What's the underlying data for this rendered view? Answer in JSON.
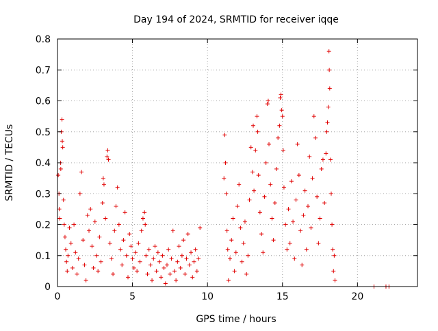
{
  "chart_data": {
    "type": "scatter",
    "title": "Day 194 of 2024, SRMTID for receiver iqqe",
    "xlabel": "GPS time / hours",
    "ylabel": "SRMTID / TECUs",
    "xlim": [
      0,
      24
    ],
    "ylim": [
      0,
      0.8
    ],
    "xticks": [
      0,
      5,
      10,
      15,
      20
    ],
    "xtick_labels": [
      "0",
      "5",
      "10",
      "15",
      "20"
    ],
    "yticks": [
      0,
      0.1,
      0.2,
      0.3,
      0.4,
      0.5,
      0.6,
      0.7,
      0.8
    ],
    "ytick_labels": [
      "0",
      "0.1",
      "0.2",
      "0.3",
      "0.4",
      "0.5",
      "0.6",
      "0.7",
      "0.8"
    ],
    "grid": true,
    "marker": "+",
    "marker_color": "#e00000",
    "series": [
      {
        "name": "SRMTID",
        "points": [
          [
            0.05,
            0.36
          ],
          [
            0.1,
            0.3
          ],
          [
            0.12,
            0.25
          ],
          [
            0.15,
            0.22
          ],
          [
            0.2,
            0.4
          ],
          [
            0.22,
            0.38
          ],
          [
            0.25,
            0.5
          ],
          [
            0.3,
            0.54
          ],
          [
            0.32,
            0.47
          ],
          [
            0.35,
            0.45
          ],
          [
            0.4,
            0.28
          ],
          [
            0.45,
            0.2
          ],
          [
            0.5,
            0.16
          ],
          [
            0.55,
            0.12
          ],
          [
            0.6,
            0.08
          ],
          [
            0.65,
            0.05
          ],
          [
            0.7,
            0.1
          ],
          [
            0.8,
            0.19
          ],
          [
            0.9,
            0.14
          ],
          [
            1.0,
            0.06
          ],
          [
            1.1,
            0.2
          ],
          [
            1.2,
            0.11
          ],
          [
            1.3,
            0.04
          ],
          [
            1.4,
            0.09
          ],
          [
            1.5,
            0.3
          ],
          [
            1.6,
            0.37
          ],
          [
            1.7,
            0.15
          ],
          [
            1.8,
            0.07
          ],
          [
            1.9,
            0.02
          ],
          [
            2.0,
            0.23
          ],
          [
            2.1,
            0.18
          ],
          [
            2.2,
            0.25
          ],
          [
            2.3,
            0.13
          ],
          [
            2.4,
            0.06
          ],
          [
            2.5,
            0.21
          ],
          [
            2.6,
            0.1
          ],
          [
            2.7,
            0.05
          ],
          [
            2.8,
            0.16
          ],
          [
            2.9,
            0.08
          ],
          [
            3.0,
            0.27
          ],
          [
            3.05,
            0.35
          ],
          [
            3.1,
            0.33
          ],
          [
            3.2,
            0.22
          ],
          [
            3.3,
            0.42
          ],
          [
            3.35,
            0.44
          ],
          [
            3.4,
            0.41
          ],
          [
            3.5,
            0.14
          ],
          [
            3.6,
            0.09
          ],
          [
            3.7,
            0.04
          ],
          [
            3.8,
            0.18
          ],
          [
            3.9,
            0.26
          ],
          [
            4.0,
            0.32
          ],
          [
            4.1,
            0.2
          ],
          [
            4.2,
            0.12
          ],
          [
            4.3,
            0.07
          ],
          [
            4.4,
            0.15
          ],
          [
            4.5,
            0.24
          ],
          [
            4.6,
            0.1
          ],
          [
            4.7,
            0.03
          ],
          [
            4.8,
            0.17
          ],
          [
            4.9,
            0.13
          ],
          [
            5.0,
            0.09
          ],
          [
            5.1,
            0.06
          ],
          [
            5.2,
            0.11
          ],
          [
            5.3,
            0.05
          ],
          [
            5.4,
            0.14
          ],
          [
            5.5,
            0.08
          ],
          [
            5.6,
            0.18
          ],
          [
            5.7,
            0.22
          ],
          [
            5.8,
            0.24
          ],
          [
            5.85,
            0.2
          ],
          [
            5.9,
            0.1
          ],
          [
            6.0,
            0.04
          ],
          [
            6.1,
            0.12
          ],
          [
            6.2,
            0.07
          ],
          [
            6.3,
            0.02
          ],
          [
            6.4,
            0.09
          ],
          [
            6.5,
            0.13
          ],
          [
            6.6,
            0.05
          ],
          [
            6.7,
            0.11
          ],
          [
            6.8,
            0.08
          ],
          [
            6.9,
            0.03
          ],
          [
            7.0,
            0.1
          ],
          [
            7.1,
            0.06
          ],
          [
            7.2,
            0.01
          ],
          [
            7.3,
            0.07
          ],
          [
            7.4,
            0.12
          ],
          [
            7.5,
            0.04
          ],
          [
            7.6,
            0.09
          ],
          [
            7.7,
            0.18
          ],
          [
            7.8,
            0.05
          ],
          [
            7.9,
            0.02
          ],
          [
            8.0,
            0.08
          ],
          [
            8.1,
            0.13
          ],
          [
            8.2,
            0.06
          ],
          [
            8.3,
            0.1
          ],
          [
            8.4,
            0.15
          ],
          [
            8.5,
            0.04
          ],
          [
            8.6,
            0.09
          ],
          [
            8.7,
            0.17
          ],
          [
            8.8,
            0.07
          ],
          [
            8.9,
            0.11
          ],
          [
            9.0,
            0.03
          ],
          [
            9.1,
            0.08
          ],
          [
            9.2,
            0.12
          ],
          [
            9.3,
            0.05
          ],
          [
            9.4,
            0.09
          ],
          [
            9.5,
            0.19
          ],
          [
            11.1,
            0.35
          ],
          [
            11.15,
            0.49
          ],
          [
            11.2,
            0.4
          ],
          [
            11.25,
            0.3
          ],
          [
            11.3,
            0.18
          ],
          [
            11.35,
            0.12
          ],
          [
            11.4,
            0.02
          ],
          [
            11.5,
            0.09
          ],
          [
            11.6,
            0.15
          ],
          [
            11.7,
            0.22
          ],
          [
            11.8,
            0.05
          ],
          [
            11.9,
            0.11
          ],
          [
            12.0,
            0.26
          ],
          [
            12.1,
            0.33
          ],
          [
            12.2,
            0.19
          ],
          [
            12.3,
            0.08
          ],
          [
            12.4,
            0.14
          ],
          [
            12.5,
            0.21
          ],
          [
            12.6,
            0.04
          ],
          [
            12.7,
            0.1
          ],
          [
            12.8,
            0.28
          ],
          [
            12.9,
            0.45
          ],
          [
            13.0,
            0.37
          ],
          [
            13.05,
            0.52
          ],
          [
            13.1,
            0.31
          ],
          [
            13.2,
            0.44
          ],
          [
            13.3,
            0.55
          ],
          [
            13.35,
            0.5
          ],
          [
            13.4,
            0.36
          ],
          [
            13.5,
            0.24
          ],
          [
            13.6,
            0.17
          ],
          [
            13.7,
            0.11
          ],
          [
            13.8,
            0.29
          ],
          [
            13.9,
            0.4
          ],
          [
            14.0,
            0.59
          ],
          [
            14.05,
            0.6
          ],
          [
            14.1,
            0.46
          ],
          [
            14.2,
            0.33
          ],
          [
            14.3,
            0.22
          ],
          [
            14.4,
            0.15
          ],
          [
            14.5,
            0.27
          ],
          [
            14.6,
            0.38
          ],
          [
            14.7,
            0.48
          ],
          [
            14.8,
            0.52
          ],
          [
            14.85,
            0.61
          ],
          [
            14.9,
            0.62
          ],
          [
            14.95,
            0.57
          ],
          [
            15.0,
            0.55
          ],
          [
            15.05,
            0.44
          ],
          [
            15.1,
            0.32
          ],
          [
            15.2,
            0.2
          ],
          [
            15.3,
            0.12
          ],
          [
            15.4,
            0.25
          ],
          [
            15.5,
            0.14
          ],
          [
            15.6,
            0.34
          ],
          [
            15.7,
            0.21
          ],
          [
            15.8,
            0.09
          ],
          [
            15.9,
            0.28
          ],
          [
            16.0,
            0.46
          ],
          [
            16.1,
            0.36
          ],
          [
            16.2,
            0.18
          ],
          [
            16.3,
            0.07
          ],
          [
            16.4,
            0.23
          ],
          [
            16.5,
            0.31
          ],
          [
            16.6,
            0.12
          ],
          [
            16.7,
            0.26
          ],
          [
            16.8,
            0.42
          ],
          [
            16.9,
            0.19
          ],
          [
            17.0,
            0.35
          ],
          [
            17.1,
            0.55
          ],
          [
            17.2,
            0.48
          ],
          [
            17.3,
            0.29
          ],
          [
            17.4,
            0.14
          ],
          [
            17.5,
            0.22
          ],
          [
            17.6,
            0.38
          ],
          [
            17.7,
            0.41
          ],
          [
            17.8,
            0.27
          ],
          [
            17.9,
            0.43
          ],
          [
            17.95,
            0.5
          ],
          [
            18.0,
            0.53
          ],
          [
            18.05,
            0.58
          ],
          [
            18.1,
            0.76
          ],
          [
            18.12,
            0.7
          ],
          [
            18.15,
            0.64
          ],
          [
            18.2,
            0.41
          ],
          [
            18.25,
            0.3
          ],
          [
            18.3,
            0.2
          ],
          [
            18.35,
            0.12
          ],
          [
            18.4,
            0.05
          ],
          [
            18.45,
            0.1
          ],
          [
            18.5,
            0.02
          ],
          [
            21.1,
            0.0
          ],
          [
            21.9,
            0.0
          ],
          [
            22.1,
            0.0
          ]
        ]
      }
    ]
  }
}
